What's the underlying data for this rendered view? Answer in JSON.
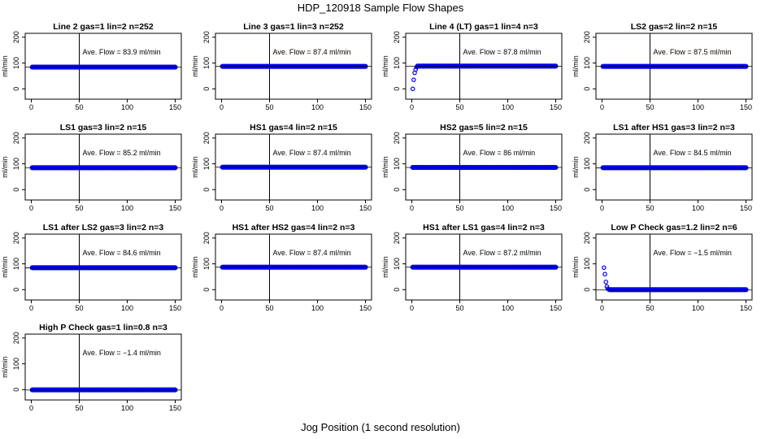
{
  "title": "HDP_120918  Sample Flow Shapes",
  "xlabel": "Jog Position (1 second resolution)",
  "chart_data": {
    "type": "scatter",
    "xlim": [
      0,
      150
    ],
    "ylim": [
      0,
      200
    ],
    "x_ticks": [
      0,
      50,
      100,
      150
    ],
    "y_ticks": [
      0,
      100,
      200
    ],
    "x_tick_labels": [
      "0",
      "50",
      "100",
      "150"
    ],
    "y_tick_labels": [
      "0",
      "100",
      "200"
    ],
    "ylabel": "ml/min",
    "vline_x": 50,
    "point_color": "#0000ff",
    "panels": [
      {
        "title": "Line 2 gas=1 lin=2 n=252",
        "annotation": "Ave. Flow =  83.9  ml/min",
        "avg_flow": 83.9,
        "shape": "flat",
        "level": 84
      },
      {
        "title": "Line 3 gas=1 lin=3 n=252",
        "annotation": "Ave. Flow =  87.4  ml/min",
        "avg_flow": 87.4,
        "shape": "flat",
        "level": 87
      },
      {
        "title": "Line 4 (LT) gas=1 lin=4 n=3",
        "annotation": "Ave. Flow =  87.8  ml/min",
        "avg_flow": 87.8,
        "shape": "ramp_up",
        "level": 88,
        "start_points": [
          [
            1,
            0
          ],
          [
            2,
            35
          ],
          [
            3,
            62
          ],
          [
            4,
            75
          ],
          [
            5,
            84
          ]
        ]
      },
      {
        "title": "LS2 gas=2 lin=2 n=15",
        "annotation": "Ave. Flow =  87.5  ml/min",
        "avg_flow": 87.5,
        "shape": "flat",
        "level": 87
      },
      {
        "title": "LS1 gas=3 lin=2 n=15",
        "annotation": "Ave. Flow =  85.2  ml/min",
        "avg_flow": 85.2,
        "shape": "flat",
        "level": 85
      },
      {
        "title": "HS1 gas=4 lin=2 n=15",
        "annotation": "Ave. Flow =  87.4  ml/min",
        "avg_flow": 87.4,
        "shape": "flat",
        "level": 87
      },
      {
        "title": "HS2 gas=5 lin=2 n=15",
        "annotation": "Ave. Flow =  86  ml/min",
        "avg_flow": 86,
        "shape": "flat",
        "level": 86
      },
      {
        "title": "LS1 after HS1 gas=3 lin=2 n=3",
        "annotation": "Ave. Flow =  84.5  ml/min",
        "avg_flow": 84.5,
        "shape": "flat",
        "level": 85
      },
      {
        "title": "LS1 after LS2 gas=3 lin=2 n=3",
        "annotation": "Ave. Flow =  84.6  ml/min",
        "avg_flow": 84.6,
        "shape": "flat",
        "level": 85
      },
      {
        "title": "HS1 after HS2 gas=4 lin=2 n=3",
        "annotation": "Ave. Flow =  87.4  ml/min",
        "avg_flow": 87.4,
        "shape": "flat",
        "level": 87
      },
      {
        "title": "HS1 after LS1 gas=4 lin=2 n=3",
        "annotation": "Ave. Flow =  87.2  ml/min",
        "avg_flow": 87.2,
        "shape": "flat",
        "level": 87
      },
      {
        "title": "Low P Check gas=1.2 lin=2 n=6",
        "annotation": "Ave. Flow =  −1.5  ml/min",
        "avg_flow": -1.5,
        "shape": "decay",
        "level": 0,
        "start_points": [
          [
            2,
            85
          ],
          [
            3,
            60
          ],
          [
            4,
            30
          ],
          [
            5,
            12
          ],
          [
            6,
            4
          ],
          [
            7,
            1
          ]
        ]
      },
      {
        "title": "High P Check gas=1 lin=0.8 n=3",
        "annotation": "Ave. Flow =  −1.4  ml/min",
        "avg_flow": -1.4,
        "shape": "flat",
        "level": -1
      }
    ]
  }
}
